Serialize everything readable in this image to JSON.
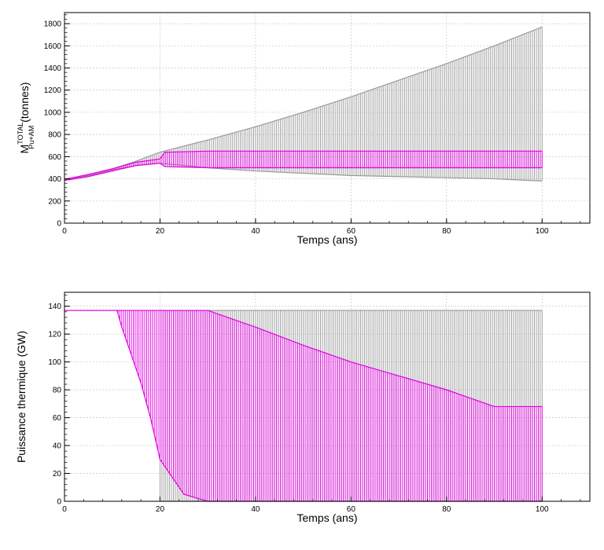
{
  "colors": {
    "envelope": "#9a9a9a",
    "band": "#e000e0",
    "grid": "#c8c8c8"
  },
  "chart_data": [
    {
      "type": "line",
      "xlabel": "Temps (ans)",
      "ylabel_main": "M",
      "ylabel_sup": "TOTAL",
      "ylabel_sub": "Pu+AM",
      "ylabel_unit": " (tonnes)",
      "xlim": [
        0,
        110
      ],
      "ylim": [
        0,
        1900
      ],
      "xticks": [
        0,
        20,
        40,
        60,
        80,
        100
      ],
      "yticks": [
        0,
        200,
        400,
        600,
        800,
        1000,
        1200,
        1400,
        1600,
        1800
      ],
      "series": [
        {
          "role": "envelope",
          "x": [
            0,
            5,
            10,
            15,
            20,
            30,
            40,
            50,
            60,
            70,
            80,
            90,
            100
          ],
          "upper": [
            390,
            430,
            490,
            560,
            640,
            750,
            870,
            1000,
            1140,
            1290,
            1440,
            1600,
            1770
          ],
          "lower": [
            390,
            430,
            480,
            520,
            540,
            500,
            470,
            450,
            430,
            420,
            410,
            400,
            380
          ]
        },
        {
          "role": "band",
          "x": [
            0,
            5,
            10,
            15,
            20,
            21,
            30,
            40,
            50,
            60,
            70,
            80,
            90,
            100
          ],
          "upper": [
            395,
            440,
            490,
            550,
            580,
            640,
            650,
            650,
            650,
            650,
            650,
            650,
            650,
            650
          ],
          "lower": [
            385,
            420,
            470,
            520,
            540,
            510,
            500,
            500,
            500,
            500,
            500,
            500,
            500,
            500
          ]
        }
      ]
    },
    {
      "type": "line",
      "xlabel": "Temps (ans)",
      "ylabel": "Puissance thermique (GW)",
      "xlim": [
        0,
        110
      ],
      "ylim": [
        0,
        150
      ],
      "xticks": [
        0,
        20,
        40,
        60,
        80,
        100
      ],
      "yticks": [
        0,
        20,
        40,
        60,
        80,
        100,
        120,
        140
      ],
      "series": [
        {
          "role": "envelope",
          "x": [
            20,
            100
          ],
          "upper": [
            137,
            137
          ],
          "lower": [
            0,
            0
          ]
        },
        {
          "role": "band",
          "x": [
            0,
            11,
            12,
            14,
            16,
            18,
            20,
            25,
            30,
            40,
            50,
            60,
            70,
            80,
            90,
            100
          ],
          "upper": [
            137,
            137,
            137,
            137,
            137,
            137,
            137,
            137,
            137,
            125,
            112,
            100,
            90,
            80,
            68,
            68
          ],
          "lower": [
            137,
            137,
            125,
            105,
            85,
            60,
            30,
            5,
            0,
            0,
            0,
            0,
            0,
            0,
            0,
            0
          ]
        }
      ]
    }
  ]
}
